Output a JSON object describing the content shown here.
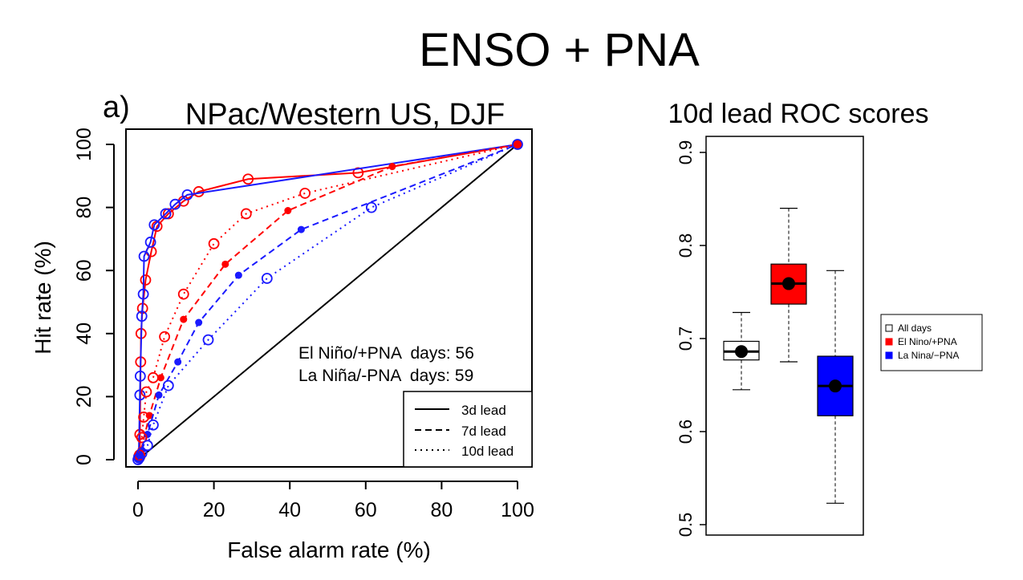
{
  "page": {
    "title": "ENSO + PNA"
  },
  "roc": {
    "panel_label": "a)",
    "title": "NPac/Western US, DJF",
    "xlabel": "False alarm rate (%)",
    "ylabel": "Hit rate (%)",
    "annotations": [
      "El Niño/+PNA  days: 56",
      "La Niña/-PNA  days: 59"
    ],
    "legend": [
      {
        "label": "3d lead",
        "style": "solid"
      },
      {
        "label": "7d lead",
        "style": "dashed"
      },
      {
        "label": "10d lead",
        "style": "dotted"
      }
    ]
  },
  "box": {
    "title": "10d lead ROC scores",
    "legend": [
      {
        "label": "All days",
        "color": "#ffffff"
      },
      {
        "label": "El Nino/+PNA",
        "color": "#ff0000"
      },
      {
        "label": "La Nina/−PNA",
        "color": "#0000ff"
      }
    ]
  },
  "colors": {
    "red": "#ff0000",
    "blue": "#1a1aff",
    "box_white": "#ffffff",
    "box_red": "#ff0000",
    "box_blue": "#0000ff"
  },
  "chart_data": [
    {
      "type": "line",
      "title": "NPac/Western US, DJF",
      "xlabel": "False alarm rate (%)",
      "ylabel": "Hit rate (%)",
      "xlim": [
        0,
        100
      ],
      "ylim": [
        0,
        100
      ],
      "xticks": [
        0,
        20,
        40,
        60,
        80,
        100
      ],
      "yticks": [
        0,
        20,
        40,
        60,
        80,
        100
      ],
      "reference_line": [
        [
          0,
          0
        ],
        [
          100,
          100
        ]
      ],
      "series": [
        {
          "group": "El Niño/+PNA",
          "lead": "3d lead",
          "color": "red",
          "style": "solid",
          "marker": "open",
          "points": [
            [
              0,
              0
            ],
            [
              0.5,
              1
            ],
            [
              0.5,
              8
            ],
            [
              0.7,
              31
            ],
            [
              0.8,
              40
            ],
            [
              1.2,
              48
            ],
            [
              2,
              57
            ],
            [
              3.5,
              66
            ],
            [
              5,
              74
            ],
            [
              8,
              78
            ],
            [
              12,
              82
            ],
            [
              16,
              85
            ],
            [
              29,
              89
            ],
            [
              58,
              91
            ],
            [
              100,
              100
            ]
          ]
        },
        {
          "group": "La Niña/-PNA",
          "lead": "3d lead",
          "color": "blue",
          "style": "solid",
          "marker": "open",
          "points": [
            [
              0,
              0
            ],
            [
              0.2,
              1
            ],
            [
              0.5,
              20.5
            ],
            [
              0.6,
              26.5
            ],
            [
              1,
              45.5
            ],
            [
              1.4,
              52.5
            ],
            [
              1.6,
              64.5
            ],
            [
              3.3,
              69
            ],
            [
              4.3,
              74.5
            ],
            [
              7.3,
              78
            ],
            [
              9.8,
              81
            ],
            [
              13,
              84
            ],
            [
              100,
              100
            ]
          ]
        },
        {
          "group": "El Niño/+PNA",
          "lead": "7d lead",
          "color": "red",
          "style": "dashed",
          "marker": "filled",
          "points": [
            [
              0,
              0
            ],
            [
              0.3,
              1
            ],
            [
              0.8,
              3
            ],
            [
              3,
              14
            ],
            [
              6,
              26
            ],
            [
              12,
              44.5
            ],
            [
              23,
              62
            ],
            [
              39.5,
              79
            ],
            [
              67,
              93
            ],
            [
              100,
              100
            ]
          ]
        },
        {
          "group": "La Niña/-PNA",
          "lead": "7d lead",
          "color": "blue",
          "style": "dashed",
          "marker": "filled",
          "points": [
            [
              0,
              0
            ],
            [
              0.5,
              1
            ],
            [
              1,
              3
            ],
            [
              2.5,
              8
            ],
            [
              5.5,
              20.5
            ],
            [
              10.5,
              31
            ],
            [
              16,
              43.5
            ],
            [
              26.5,
              58.5
            ],
            [
              43,
              73
            ],
            [
              100,
              100
            ]
          ]
        },
        {
          "group": "El Niño/+PNA",
          "lead": "10d lead",
          "color": "red",
          "style": "dotted",
          "marker": "open",
          "points": [
            [
              0,
              0
            ],
            [
              0.4,
              1.5
            ],
            [
              1,
              7
            ],
            [
              1.5,
              13.5
            ],
            [
              2.2,
              21.5
            ],
            [
              4,
              26
            ],
            [
              7,
              39
            ],
            [
              12,
              52.5
            ],
            [
              20,
              68.5
            ],
            [
              28.5,
              78
            ],
            [
              44,
              84.5
            ],
            [
              100,
              100
            ]
          ]
        },
        {
          "group": "La Niña/-PNA",
          "lead": "10d lead",
          "color": "blue",
          "style": "dotted",
          "marker": "open",
          "points": [
            [
              0,
              0
            ],
            [
              0.3,
              0.5
            ],
            [
              1,
              2
            ],
            [
              2.5,
              4.5
            ],
            [
              4,
              11
            ],
            [
              8,
              23.5
            ],
            [
              18.5,
              38
            ],
            [
              34,
              57.5
            ],
            [
              61.5,
              80
            ],
            [
              100,
              100
            ]
          ]
        }
      ]
    },
    {
      "type": "box",
      "title": "10d lead ROC scores",
      "ylim": [
        0.5,
        0.9
      ],
      "yticks": [
        0.5,
        0.6,
        0.7,
        0.8,
        0.9
      ],
      "boxes": [
        {
          "name": "All days",
          "color": "#ffffff",
          "whisker_low": 0.645,
          "q1": 0.677,
          "median": 0.686,
          "q3": 0.697,
          "whisker_high": 0.728,
          "mean": 0.686
        },
        {
          "name": "El Nino/+PNA",
          "color": "#ff0000",
          "whisker_low": 0.675,
          "q1": 0.737,
          "median": 0.759,
          "q3": 0.78,
          "whisker_high": 0.84,
          "mean": 0.759
        },
        {
          "name": "La Nina/−PNA",
          "color": "#0000ff",
          "whisker_low": 0.523,
          "q1": 0.617,
          "median": 0.649,
          "q3": 0.681,
          "whisker_high": 0.773,
          "mean": 0.649
        }
      ]
    }
  ]
}
